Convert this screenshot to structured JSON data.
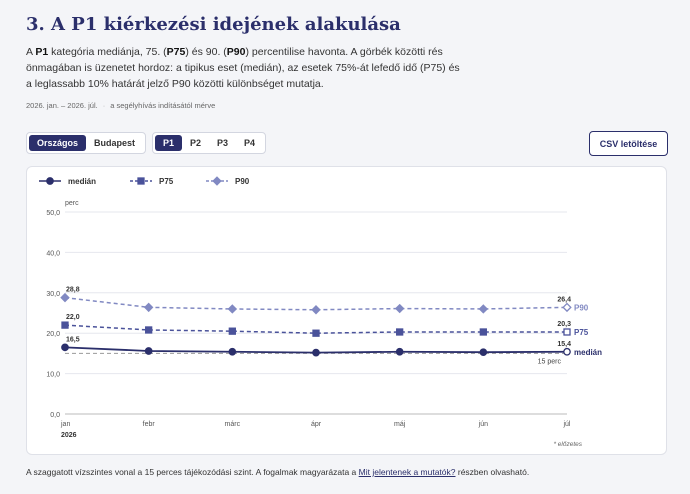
{
  "header": {
    "title": "3. A P1 kiérkezési idejének alakulása",
    "desc_1": "A ",
    "desc_b1": "P1",
    "desc_2": " kategória mediánja, 75. (",
    "desc_b2": "P75",
    "desc_3": ") és 90. (",
    "desc_b3": "P90",
    "desc_4": ") percentilise havonta. A görbék közötti rés önmagában is üzenetet hordoz: a tipikus eset (medián), az esetek 75%-át lefedő idő (P75) és a leglassabb 10% határát jelző P90 közötti különbséget mutatja.",
    "period": "2026. jan. – 2026. júl.",
    "dot": "·",
    "period_note": "a segélyhívás indításától mérve"
  },
  "controls": {
    "regions": [
      "Országos",
      "Budapest"
    ],
    "region_active": 0,
    "percentiles": [
      "P1",
      "P2",
      "P3",
      "P4"
    ],
    "percentile_active": 0,
    "csv_label": "CSV letöltése"
  },
  "footer": {
    "text": "A szaggatott vízszintes vonal a 15 perces tájékozódási szint. A fogalmak magyarázata a ",
    "link": "Mit jelentenek a mutatók?",
    "text_end": " részben olvasható."
  },
  "chart_data": {
    "type": "line",
    "categories": [
      "jan",
      "febr",
      "márc",
      "ápr",
      "máj",
      "jún",
      "júl"
    ],
    "year_label": "2026",
    "ylabel": "perc",
    "ylim": [
      0,
      50
    ],
    "yticks": [
      "0,0",
      "10,0",
      "20,0",
      "30,0",
      "40,0",
      "50,0"
    ],
    "grid": true,
    "legend_position": "top-left",
    "reference_line": {
      "value": 15,
      "label": "15 perc"
    },
    "preliminary_note": "* előzetes",
    "series": [
      {
        "name": "medián",
        "values": [
          16.5,
          15.6,
          15.4,
          15.2,
          15.4,
          15.3,
          15.4
        ],
        "color": "#2b2f6b",
        "dash": "solid",
        "marker": "circle",
        "first_label": "16,5",
        "last_label": "15,4"
      },
      {
        "name": "P75",
        "values": [
          22.0,
          20.8,
          20.5,
          20.0,
          20.3,
          20.3,
          20.3
        ],
        "color": "#4a529a",
        "dash": "dashed",
        "marker": "square",
        "first_label": "22,0",
        "last_label": "20,3"
      },
      {
        "name": "P90",
        "values": [
          28.8,
          26.4,
          26.0,
          25.8,
          26.1,
          26.0,
          26.4
        ],
        "color": "#8189c2",
        "dash": "dashed",
        "marker": "diamond",
        "first_label": "28,8",
        "last_label": "26,4"
      }
    ]
  }
}
